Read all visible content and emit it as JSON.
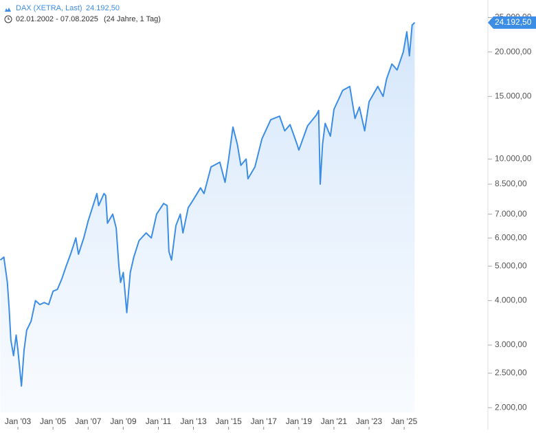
{
  "header": {
    "instrument": "DAX (XETRA, Last)",
    "last_label": "24.192,50",
    "range": "02.01.2002 - 07.08.2025",
    "span": "(24 Jahre, 1 Tag)"
  },
  "chart_data": {
    "type": "line",
    "log_scale": true,
    "color": "#3b8de6",
    "xlim": [
      2001.98,
      2025.62
    ],
    "ylim": [
      1940,
      28000
    ],
    "xticks": [
      {
        "value": 2003,
        "label": "Jan '03"
      },
      {
        "value": 2005,
        "label": "Jan '05"
      },
      {
        "value": 2007,
        "label": "Jan '07"
      },
      {
        "value": 2009,
        "label": "Jan '09"
      },
      {
        "value": 2011,
        "label": "Jan '11"
      },
      {
        "value": 2013,
        "label": "Jan '13"
      },
      {
        "value": 2015,
        "label": "Jan '15"
      },
      {
        "value": 2017,
        "label": "Jan '17"
      },
      {
        "value": 2019,
        "label": "Jan '19"
      },
      {
        "value": 2021,
        "label": "Jan '21"
      },
      {
        "value": 2023,
        "label": "Jan '23"
      },
      {
        "value": 2025,
        "label": "Jan '25"
      }
    ],
    "yticks": [
      {
        "value": 2000,
        "label": "2.000,00"
      },
      {
        "value": 2500,
        "label": "2.500,00"
      },
      {
        "value": 3000,
        "label": "3.000,00"
      },
      {
        "value": 4000,
        "label": "4.000,00"
      },
      {
        "value": 5000,
        "label": "5.000,00"
      },
      {
        "value": 6000,
        "label": "6.000,00"
      },
      {
        "value": 7000,
        "label": "7.000,00"
      },
      {
        "value": 8500,
        "label": "8.500,00"
      },
      {
        "value": 10000,
        "label": "10.000,00"
      },
      {
        "value": 15000,
        "label": "15.000,00"
      },
      {
        "value": 20000,
        "label": "20.000,00"
      },
      {
        "value": 25000,
        "label": "25.000,00"
      }
    ],
    "series": [
      {
        "name": "DAX (XETRA, Last)",
        "color": "#3b8de6",
        "x": [
          2002.0,
          2002.2,
          2002.4,
          2002.5,
          2002.6,
          2002.75,
          2002.9,
          2003.0,
          2003.2,
          2003.35,
          2003.5,
          2003.75,
          2004.0,
          2004.25,
          2004.5,
          2004.75,
          2005.0,
          2005.25,
          2005.5,
          2005.75,
          2006.0,
          2006.3,
          2006.45,
          2006.75,
          2007.0,
          2007.5,
          2007.6,
          2007.9,
          2008.0,
          2008.1,
          2008.4,
          2008.6,
          2008.75,
          2008.85,
          2009.0,
          2009.2,
          2009.4,
          2009.6,
          2009.9,
          2010.3,
          2010.6,
          2010.9,
          2011.3,
          2011.5,
          2011.6,
          2011.75,
          2012.0,
          2012.25,
          2012.4,
          2012.7,
          2013.0,
          2013.4,
          2013.6,
          2014.0,
          2014.5,
          2014.8,
          2015.0,
          2015.25,
          2015.5,
          2015.7,
          2016.0,
          2016.1,
          2016.5,
          2016.9,
          2017.4,
          2017.9,
          2018.2,
          2018.5,
          2018.9,
          2019.0,
          2019.5,
          2020.0,
          2020.13,
          2020.22,
          2020.35,
          2020.5,
          2020.8,
          2021.0,
          2021.5,
          2021.9,
          2022.2,
          2022.45,
          2022.75,
          2023.0,
          2023.5,
          2023.8,
          2024.0,
          2024.3,
          2024.6,
          2024.95,
          2025.15,
          2025.3,
          2025.45,
          2025.6
        ],
        "values": [
          5200,
          5300,
          4500,
          3800,
          3100,
          2800,
          3200,
          2900,
          2300,
          2900,
          3300,
          3500,
          4000,
          3900,
          3950,
          3900,
          4250,
          4300,
          4600,
          5000,
          5400,
          6000,
          5400,
          6000,
          6700,
          8000,
          7400,
          8000,
          7900,
          6600,
          7000,
          6400,
          5000,
          4500,
          4800,
          3700,
          4800,
          5300,
          5900,
          6200,
          6000,
          7000,
          7500,
          7400,
          5500,
          5200,
          6500,
          7000,
          6200,
          7300,
          7700,
          8300,
          8000,
          9500,
          9800,
          8600,
          10000,
          12300,
          11000,
          9600,
          10000,
          8800,
          9500,
          11400,
          12900,
          13200,
          12000,
          12500,
          11000,
          10600,
          12400,
          13300,
          13700,
          8500,
          11000,
          12600,
          11600,
          13800,
          15600,
          16000,
          13000,
          14000,
          12000,
          14500,
          16000,
          15000,
          16800,
          18500,
          17800,
          20000,
          22800,
          19500,
          23800,
          24192.5
        ]
      }
    ]
  }
}
